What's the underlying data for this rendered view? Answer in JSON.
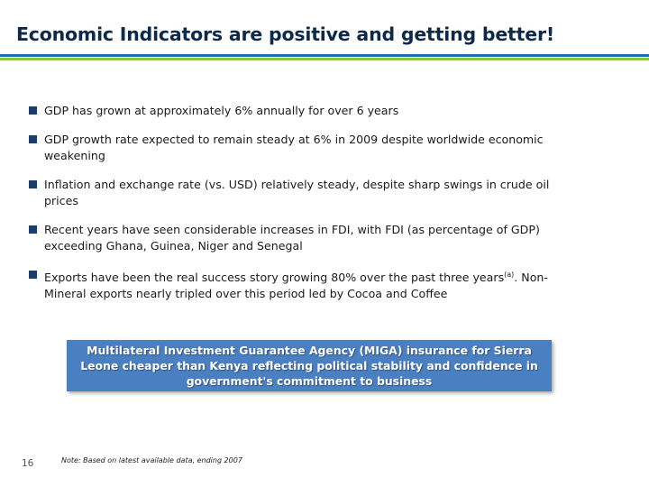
{
  "title": "Economic Indicators are positive and getting better!",
  "colors": {
    "title": "#0d2a4a",
    "rule_blue": "#1f6fb8",
    "rule_green": "#8cc63f",
    "bullet": "#1a3d6b",
    "callout_bg": "#4a7fc1"
  },
  "bullets": [
    {
      "text": "GDP has grown at approximately 6% annually for over 6 years"
    },
    {
      "text": "GDP growth rate expected to remain steady at 6% in 2009 despite worldwide economic\nweakening"
    },
    {
      "text": "Inflation and exchange rate (vs. USD) relatively steady, despite sharp swings in crude oil\nprices"
    },
    {
      "text": "Recent years have seen considerable increases in FDI, with FDI (as percentage of GDP)\nexceeding Ghana, Guinea, Niger and Senegal"
    },
    {
      "text_before": "Exports have been the real success story growing 80% over the past three years",
      "superscript": "(a)",
      "text_after": ".  Non-\nMineral exports nearly tripled over this period led by Cocoa and Coffee"
    }
  ],
  "callout": "Multilateral Investment Guarantee Agency (MIGA) insurance for Sierra Leone cheaper than Kenya reflecting political stability and confidence in government's commitment to business",
  "page_number": "16",
  "footnote": "Note: Based on latest available data, ending 2007"
}
